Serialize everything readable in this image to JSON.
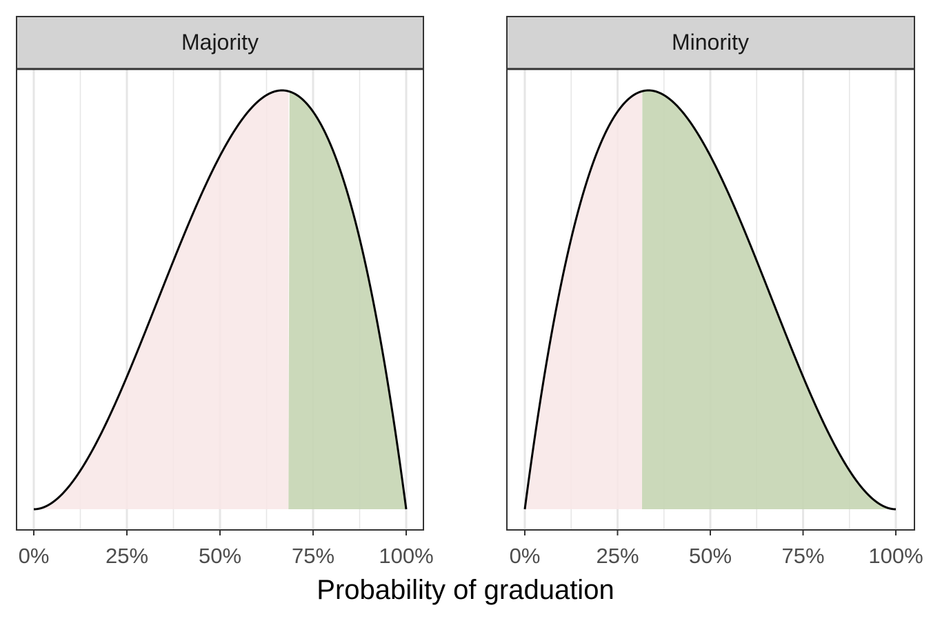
{
  "chart_data": {
    "type": "area",
    "xlabel": "Probability of graduation",
    "ylabel": "",
    "xlim": [
      0,
      1
    ],
    "x_ticks": [
      0,
      0.25,
      0.5,
      0.75,
      1
    ],
    "x_tick_labels": [
      "0%",
      "25%",
      "50%",
      "75%",
      "100%"
    ],
    "x_minor_ticks": [
      0.125,
      0.375,
      0.625,
      0.875
    ],
    "y_ticks_shown": false,
    "grid": "vertical",
    "legend": "none",
    "colors": {
      "below_threshold": "#f8e6e6",
      "above_threshold": "#c7d6b4",
      "curve": "#000000",
      "strip_fill": "#d3d3d3",
      "grid": "#e6e6e6"
    },
    "panels": [
      {
        "label": "Majority",
        "distribution": "beta",
        "alpha": 3,
        "beta": 2,
        "mode": 0.667,
        "threshold": 0.684,
        "series": [
          {
            "x": 0.0,
            "density": 0.0
          },
          {
            "x": 0.05,
            "density": 0.029
          },
          {
            "x": 0.1,
            "density": 0.108
          },
          {
            "x": 0.15,
            "density": 0.23
          },
          {
            "x": 0.2,
            "density": 0.384
          },
          {
            "x": 0.25,
            "density": 0.563
          },
          {
            "x": 0.3,
            "density": 0.756
          },
          {
            "x": 0.35,
            "density": 0.956
          },
          {
            "x": 0.4,
            "density": 1.152
          },
          {
            "x": 0.45,
            "density": 1.337
          },
          {
            "x": 0.5,
            "density": 1.5
          },
          {
            "x": 0.55,
            "density": 1.634
          },
          {
            "x": 0.6,
            "density": 1.728
          },
          {
            "x": 0.65,
            "density": 1.775
          },
          {
            "x": 0.7,
            "density": 1.764
          },
          {
            "x": 0.75,
            "density": 1.688
          },
          {
            "x": 0.8,
            "density": 1.536
          },
          {
            "x": 0.85,
            "density": 1.301
          },
          {
            "x": 0.9,
            "density": 0.972
          },
          {
            "x": 0.95,
            "density": 0.542
          },
          {
            "x": 1.0,
            "density": 0.0
          }
        ]
      },
      {
        "label": "Minority",
        "distribution": "beta",
        "alpha": 2,
        "beta": 3,
        "mode": 0.333,
        "threshold": 0.316,
        "series": [
          {
            "x": 0.0,
            "density": 0.0
          },
          {
            "x": 0.05,
            "density": 0.542
          },
          {
            "x": 0.1,
            "density": 0.972
          },
          {
            "x": 0.15,
            "density": 1.301
          },
          {
            "x": 0.2,
            "density": 1.536
          },
          {
            "x": 0.25,
            "density": 1.688
          },
          {
            "x": 0.3,
            "density": 1.764
          },
          {
            "x": 0.35,
            "density": 1.775
          },
          {
            "x": 0.4,
            "density": 1.728
          },
          {
            "x": 0.45,
            "density": 1.634
          },
          {
            "x": 0.5,
            "density": 1.5
          },
          {
            "x": 0.55,
            "density": 1.337
          },
          {
            "x": 0.6,
            "density": 1.152
          },
          {
            "x": 0.65,
            "density": 0.956
          },
          {
            "x": 0.7,
            "density": 0.756
          },
          {
            "x": 0.75,
            "density": 0.563
          },
          {
            "x": 0.8,
            "density": 0.384
          },
          {
            "x": 0.85,
            "density": 0.23
          },
          {
            "x": 0.9,
            "density": 0.108
          },
          {
            "x": 0.95,
            "density": 0.029
          },
          {
            "x": 1.0,
            "density": 0.0
          }
        ]
      }
    ]
  }
}
